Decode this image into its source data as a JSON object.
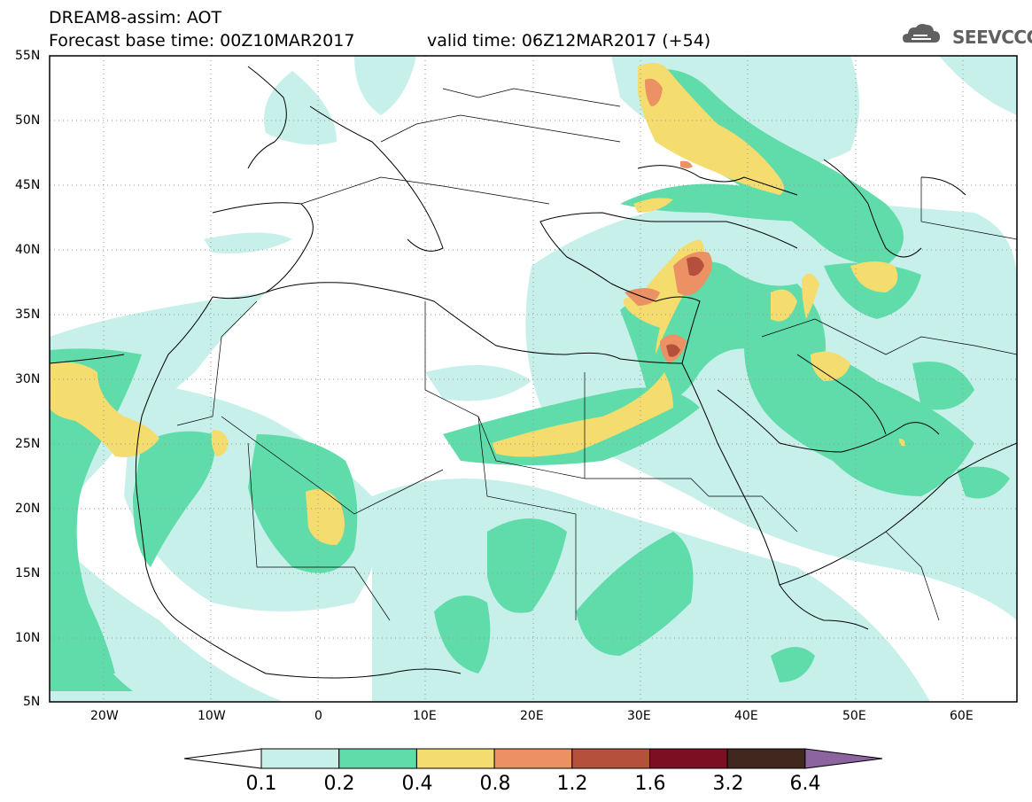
{
  "header": {
    "title": "DREAM8-assim: AOT",
    "base_time": "Forecast base time: 00Z10MAR2017",
    "valid_time": "valid time: 06Z12MAR2017 (+54)",
    "logo_text": "SEEVCCC",
    "logo_icon": "cloud-icon"
  },
  "map": {
    "lon_range": [
      -25,
      65
    ],
    "lat_range": [
      5,
      55
    ],
    "lat_labels": [
      "55N",
      "50N",
      "45N",
      "40N",
      "35N",
      "30N",
      "25N",
      "20N",
      "15N",
      "10N",
      "5N"
    ],
    "lon_labels": [
      "20W",
      "10W",
      "0",
      "10E",
      "20E",
      "30E",
      "40E",
      "50E",
      "60E"
    ],
    "field": "Aerosol Optical Thickness (dust)"
  },
  "colorbar": {
    "labels": [
      "0.1",
      "0.2",
      "0.4",
      "0.8",
      "1.2",
      "1.6",
      "3.2",
      "6.4"
    ],
    "colors": [
      "#ffffff",
      "#c8f0ea",
      "#5fdcaa",
      "#f5dc6e",
      "#eb9164",
      "#b4503c",
      "#7d0f23",
      "#41281e",
      "#8c64a0"
    ]
  }
}
